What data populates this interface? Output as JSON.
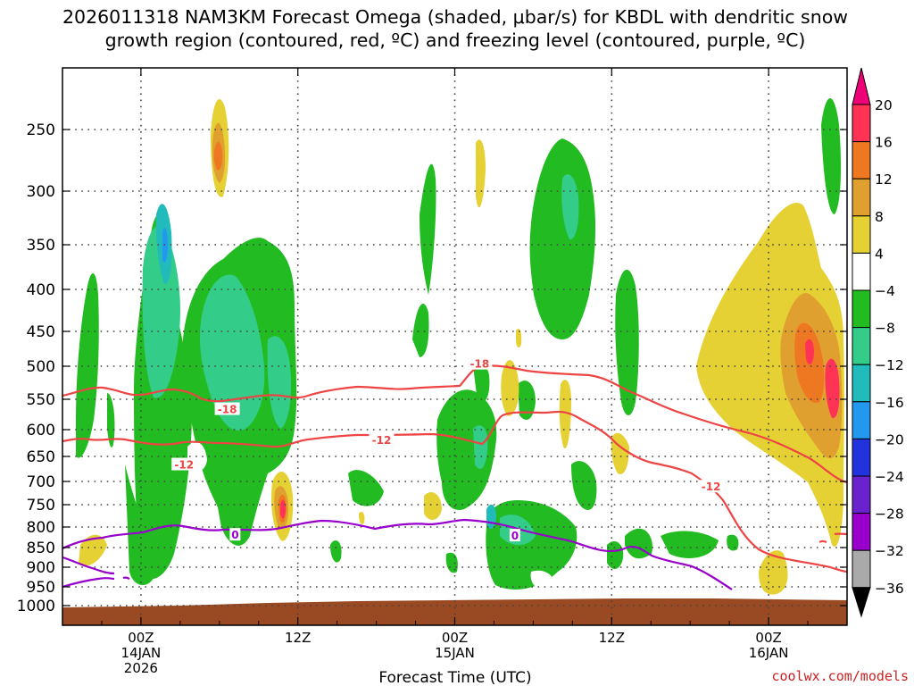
{
  "title": {
    "line1": "2026011318 NAM3KM Forecast Omega (shaded, μbar/s) for KBDL with dendritic snow",
    "line2": "growth region (contoured, red, ºC) and freezing level (contoured, purple, ºC)"
  },
  "xlabel": "Forecast Time (UTC)",
  "credit": "coolwx.com/models",
  "colors": {
    "ground": "#9a4a22",
    "dendritic_line": "#ee4444",
    "freezing_line": "#9900cc",
    "grid": "#444444"
  },
  "chart_data": {
    "type": "heatmap",
    "title": "2026011318 NAM3KM Forecast Omega (shaded, μbar/s) for KBDL with dendritic snow growth region (contoured, red, ºC) and freezing level (contoured, purple, ºC)",
    "xlabel": "Forecast Time (UTC)",
    "ylabel": "",
    "x_ticks": [
      {
        "hours": 6,
        "label": "00Z",
        "sub1": "14JAN",
        "sub2": "2026"
      },
      {
        "hours": 18,
        "label": "12Z",
        "sub1": "",
        "sub2": ""
      },
      {
        "hours": 30,
        "label": "00Z",
        "sub1": "15JAN",
        "sub2": ""
      },
      {
        "hours": 42,
        "label": "12Z",
        "sub1": "",
        "sub2": ""
      },
      {
        "hours": 54,
        "label": "00Z",
        "sub1": "16JAN",
        "sub2": ""
      }
    ],
    "xlim_hours": [
      0,
      60
    ],
    "y_pressure_levels": [
      250,
      300,
      350,
      400,
      450,
      500,
      550,
      600,
      650,
      700,
      750,
      800,
      850,
      900,
      950,
      1000
    ],
    "ylim_hpa": [
      200,
      1000
    ],
    "grid": true,
    "colorbar": {
      "unit": "μbar/s",
      "labels": [
        "20",
        "16",
        "12",
        "8",
        "4",
        "−4",
        "−8",
        "−12",
        "−16",
        "−20",
        "−24",
        "−28",
        "−32",
        "−36"
      ],
      "colors": [
        "#ff3355",
        "#ee7722",
        "#e0a030",
        "#e6d135",
        "#ffffff",
        "#22bb22",
        "#33cc88",
        "#22bbbb",
        "#2299ee",
        "#2233dd",
        "#6a22cc",
        "#9900cc",
        "#aaaaaa"
      ],
      "top_arrow_color": "#ee0077",
      "bottom_arrow_color": "#000000"
    },
    "contour_labels": [
      {
        "text": "-18",
        "color": "#ee4444",
        "hours": 12.6,
        "hpa": 567
      },
      {
        "text": "-12",
        "color": "#ee4444",
        "hours": 9.3,
        "hpa": 667
      },
      {
        "text": "-12",
        "color": "#ee4444",
        "hours": 24.4,
        "hpa": 620
      },
      {
        "text": "-18",
        "color": "#ee4444",
        "hours": 31.9,
        "hpa": 497
      },
      {
        "text": "-12",
        "color": "#ee4444",
        "hours": 49.6,
        "hpa": 712
      },
      {
        "text": "0",
        "color": "#9900cc",
        "hours": 13.2,
        "hpa": 820
      },
      {
        "text": "0",
        "color": "#9900cc",
        "hours": 34.6,
        "hpa": 822
      }
    ]
  }
}
